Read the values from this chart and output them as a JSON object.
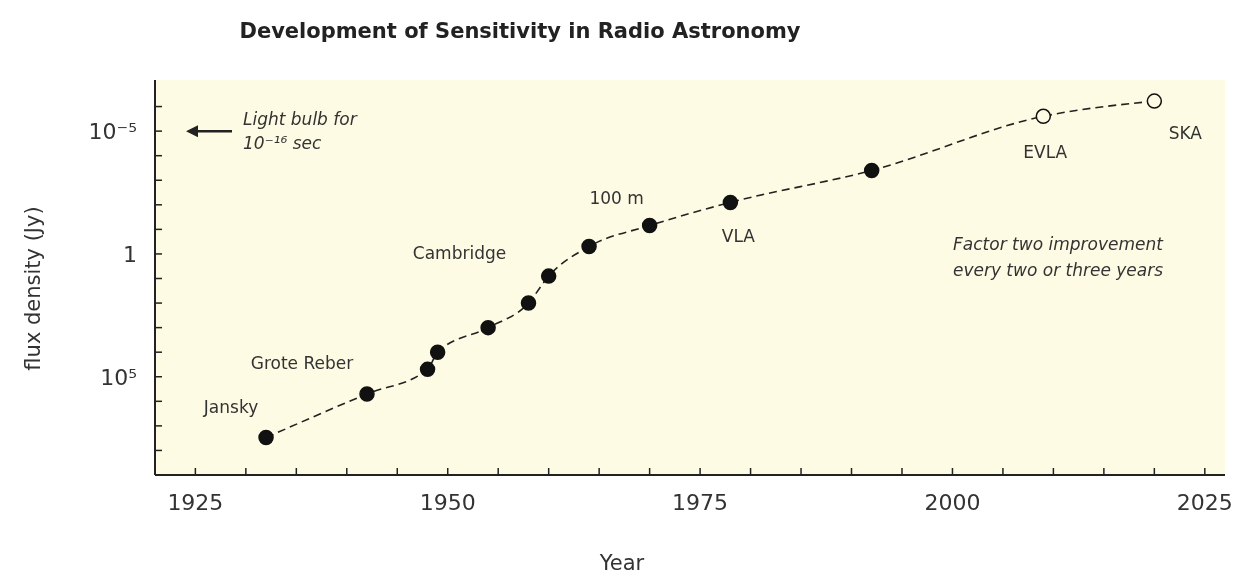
{
  "chart_data": {
    "type": "line",
    "title": "Development of Sensitivity in Radio Astronomy",
    "xlabel": "Year",
    "ylabel": "flux density (Jy)",
    "x": [
      1932,
      1942,
      1948,
      1949,
      1954,
      1958,
      1960,
      1964,
      1970,
      1978,
      1992,
      2009,
      2020
    ],
    "series": [
      {
        "color": "#222222",
        "marker": "circle",
        "line_style": "dashed",
        "colors": [
          "#111111",
          "#111111",
          "#111111",
          "#111111",
          "#111111",
          "#111111",
          "#111111",
          "#111111",
          "#111111",
          "#111111",
          "#111111",
          "#fdfbe3",
          "#fdfbe3"
        ],
        "values": [
          30000000,
          500000,
          50000,
          10000,
          1000,
          100,
          8,
          0.5,
          0.07,
          0.008,
          0.0004,
          2.5e-06,
          6e-07
        ]
      }
    ],
    "log": true,
    "xlim": [
      1921,
      2027
    ],
    "xticks": [
      1925,
      {
        "value": 1930,
        "label": null
      },
      {
        "value": 1935,
        "label": null
      },
      {
        "value": 1940,
        "label": null
      },
      {
        "value": 1945,
        "label": null
      },
      1950,
      {
        "value": 1955,
        "label": null
      },
      {
        "value": 1960,
        "label": null
      },
      {
        "value": 1965,
        "label": null
      },
      {
        "value": 1970,
        "label": null
      },
      1975,
      {
        "value": 1980,
        "label": null
      },
      {
        "value": 1985,
        "label": null
      },
      {
        "value": 1990,
        "label": null
      },
      {
        "value": 1995,
        "label": null
      },
      2000,
      {
        "value": 2005,
        "label": null
      },
      {
        "value": 2010,
        "label": null
      },
      {
        "value": 2015,
        "label": null
      },
      {
        "value": 2020,
        "label": null
      },
      2025
    ],
    "ylim": [
      1000000000,
      1e-07
    ],
    "yticks": [
      {
        "value": 100000000,
        "label": null
      },
      {
        "value": 10000000,
        "label": null
      },
      {
        "value": 1000000,
        "label": null
      },
      {
        "value": 100000,
        "label": "10⁵"
      },
      {
        "value": 10000,
        "label": null
      },
      {
        "value": 1000,
        "label": null
      },
      {
        "value": 100,
        "label": null
      },
      {
        "value": 10,
        "label": null
      },
      1,
      {
        "value": 0.1,
        "label": null
      },
      {
        "value": 0.01,
        "label": null
      },
      {
        "value": 0.001,
        "label": null
      },
      {
        "value": 0.0001,
        "label": null
      },
      {
        "value": 1e-05,
        "label": "10⁻⁵"
      },
      {
        "value": 1e-06,
        "label": null
      }
    ],
    "grid": false,
    "annotations": [
      {
        "text": "Jansky",
        "x": 1932,
        "y": 30000000
      },
      {
        "text": "Grote Reber",
        "x": 1942,
        "y": 500000
      },
      {
        "text": "Cambridge",
        "x": 1958,
        "y": 100
      },
      {
        "text": "100 m",
        "x": 1970,
        "y": 0.07
      },
      {
        "text": "VLA",
        "x": 1978,
        "y": 0.008
      },
      {
        "text": "EVLA",
        "x": 2009,
        "y": 2.5e-06
      },
      {
        "text": "SKA",
        "x": 2020,
        "y": 6e-07
      },
      "Light bulb for 10⁻¹⁶ sec",
      "Factor two improvement every two or three years"
    ]
  }
}
